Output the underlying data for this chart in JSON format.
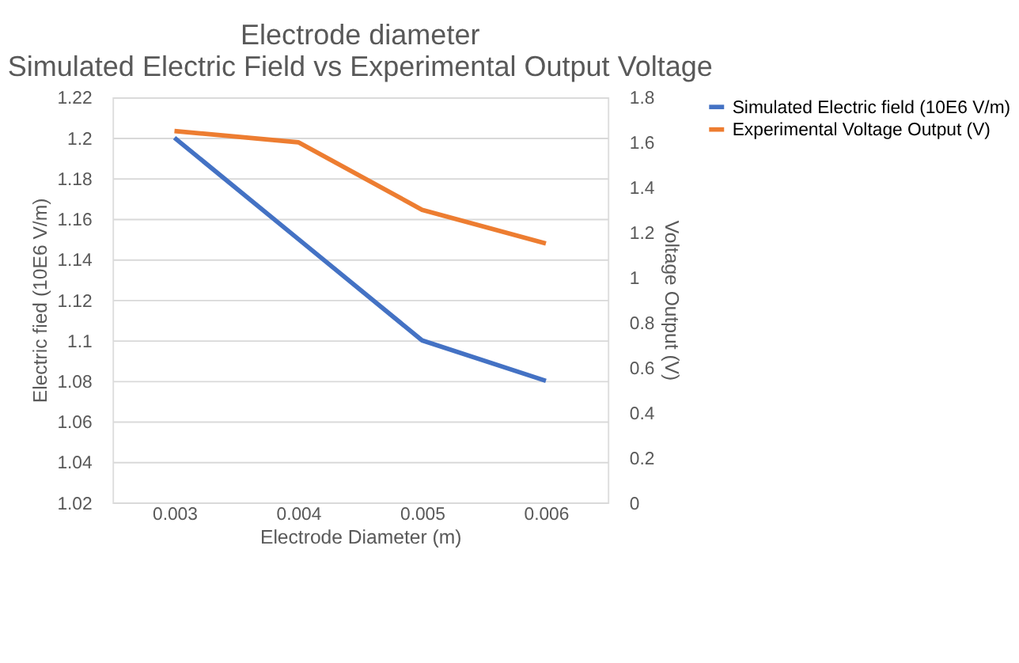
{
  "chart_data": {
    "type": "line",
    "title": [
      "Electrode diameter",
      "Simulated Electric Field vs Experimental Output Voltage"
    ],
    "xlabel": "Electrode Diameter (m)",
    "ylabel": "Electric fied (10E6 V/m)",
    "y2label": "Voltage Output (V)",
    "categories": [
      "0.003",
      "0.004",
      "0.005",
      "0.006"
    ],
    "series": [
      {
        "name": "Simulated Electric field (10E6 V/m)",
        "color": "#4472c4",
        "values": [
          1.2,
          1.15,
          1.1,
          1.08
        ]
      },
      {
        "name": "Experimental Voltage Output (V)",
        "color": "#ed7d31",
        "values": [
          1.65,
          1.6,
          1.3,
          1.15
        ],
        "axis": "y2"
      }
    ],
    "ylim": [
      1.02,
      1.22
    ],
    "yticks": [
      1.02,
      1.04,
      1.06,
      1.08,
      1.1,
      1.12,
      1.14,
      1.16,
      1.18,
      1.2,
      1.22
    ],
    "y2lim": [
      0,
      1.8
    ],
    "y2ticks": [
      0,
      0.2,
      0.4,
      0.6,
      0.8,
      1,
      1.2,
      1.4,
      1.6,
      1.8
    ],
    "grid": "y",
    "legend": "right",
    "marker": "none",
    "line_style": "solid"
  }
}
